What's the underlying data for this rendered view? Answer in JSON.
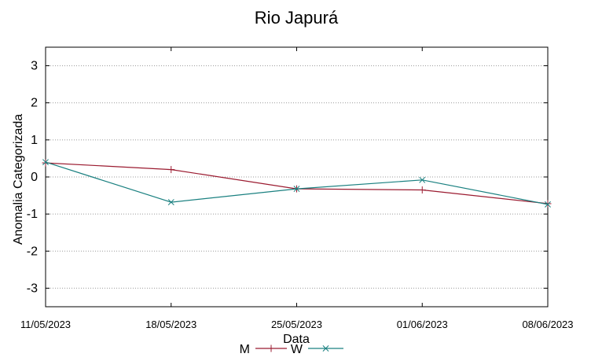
{
  "chart_data": {
    "type": "line",
    "title": "Rio Japurá",
    "xlabel": "Data",
    "ylabel": "Anomalia Categorizada",
    "categories": [
      "11/05/2023",
      "18/05/2023",
      "25/05/2023",
      "01/06/2023",
      "08/06/2023"
    ],
    "yticks": [
      "3",
      "2",
      "1",
      "0",
      "-1",
      "-2",
      "-3"
    ],
    "ylim": [
      -3.5,
      3.5
    ],
    "grid": "horizontal dotted",
    "legend_position": "bottom-center",
    "series": [
      {
        "name": "M",
        "color": "#9b1b30",
        "marker": "plus",
        "values": [
          0.38,
          0.2,
          -0.32,
          -0.35,
          -0.72
        ]
      },
      {
        "name": "W",
        "color": "#1a8080",
        "marker": "cross",
        "values": [
          0.4,
          -0.68,
          -0.32,
          -0.08,
          -0.74
        ]
      }
    ]
  }
}
